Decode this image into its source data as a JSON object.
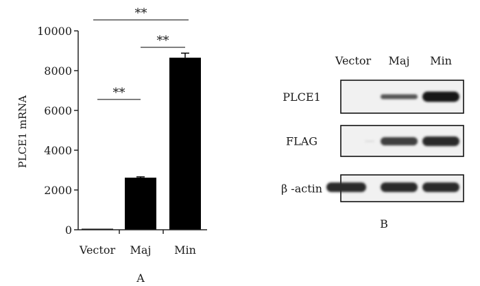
{
  "chart_data": [
    {
      "type": "bar",
      "panel_label": "A",
      "categories": [
        "Vector",
        "Maj",
        "Min"
      ],
      "values": [
        30,
        2620,
        8650
      ],
      "errors": [
        5,
        40,
        230
      ],
      "ylabel": "PLCE1 mRNA",
      "ylim": [
        0,
        10000
      ],
      "yticks": [
        0,
        2000,
        4000,
        6000,
        8000,
        10000
      ],
      "bar_color": "#000000",
      "significance": [
        {
          "from": "Vector",
          "to": "Maj",
          "label": "**"
        },
        {
          "from": "Maj",
          "to": "Min",
          "label": "**"
        },
        {
          "from": "Vector",
          "to": "Min",
          "label": "**"
        }
      ]
    },
    {
      "type": "blot",
      "panel_label": "B",
      "lanes": [
        "Vector",
        "Maj",
        "Min"
      ],
      "rows": [
        {
          "label": "PLCE1",
          "intensities": [
            0.0,
            0.7,
            1.0
          ]
        },
        {
          "label": "FLAG",
          "intensities": [
            0.05,
            0.8,
            0.9
          ]
        },
        {
          "label": "β -actin",
          "intensities": [
            0.9,
            0.9,
            0.9
          ]
        }
      ]
    }
  ]
}
